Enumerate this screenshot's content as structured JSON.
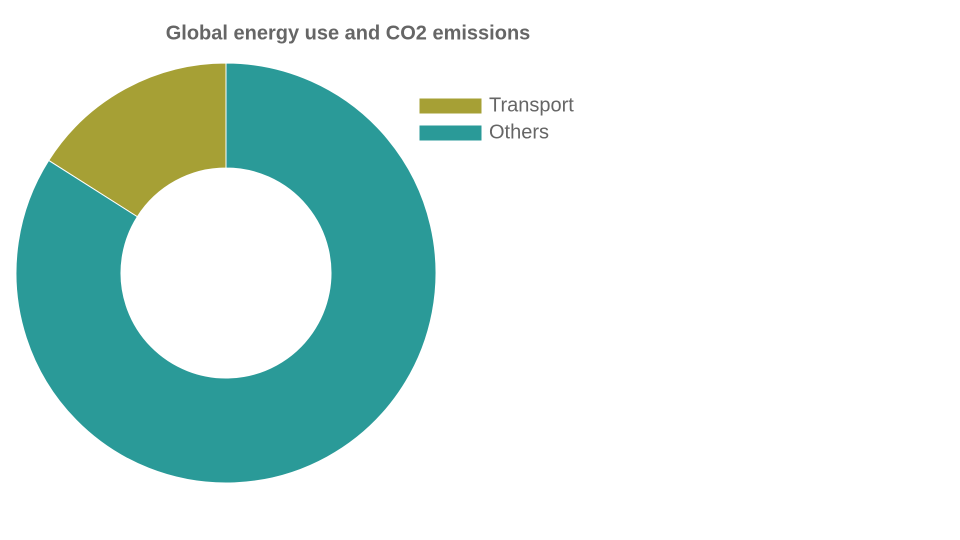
{
  "chart_data": {
    "type": "doughnut",
    "title": "Global energy use and CO2 emissions",
    "categories": [
      "Transport",
      "Others"
    ],
    "values": [
      16,
      84
    ],
    "colors": [
      "#a6a035",
      "#2a9a98"
    ],
    "legend": "right"
  }
}
